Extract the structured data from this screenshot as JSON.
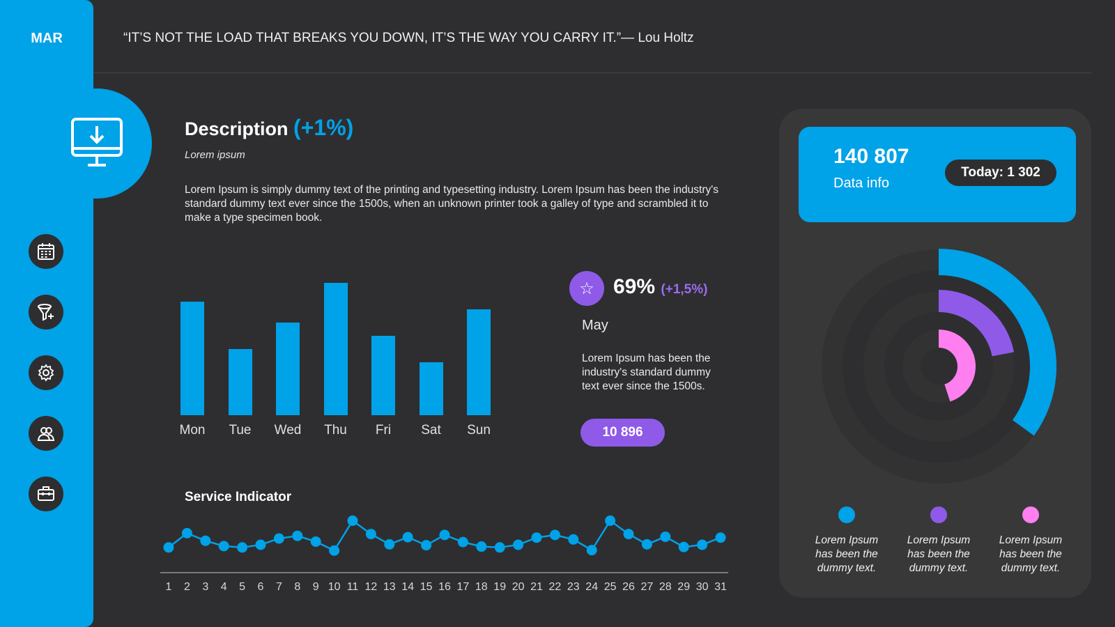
{
  "sidebar": {
    "month": "MAR",
    "nav": [
      {
        "name": "calendar-icon"
      },
      {
        "name": "filter-icon"
      },
      {
        "name": "gear-icon"
      },
      {
        "name": "users-icon"
      },
      {
        "name": "briefcase-icon"
      }
    ]
  },
  "header": {
    "quote": "“IT’S NOT THE LOAD THAT BREAKS YOU DOWN, IT’S THE WAY YOU CARRY IT.”— Lou Holtz"
  },
  "description": {
    "title": "Description",
    "change": "(+1%)",
    "subtitle": "Lorem ipsum",
    "body": "Lorem Ipsum is simply dummy text of the printing and typesetting industry. Lorem Ipsum has been the industry's standard dummy text ever since the 1500s, when an unknown printer took a galley of type and scrambled it to make a type specimen book."
  },
  "kpi": {
    "value": "69%",
    "delta": "(+1,5%)",
    "month": "May",
    "body": "Lorem Ipsum has been the industry's standard dummy text ever since the 1500s.",
    "pill": "10 896"
  },
  "service": {
    "title": "Service Indicator"
  },
  "info": {
    "number": "140 807",
    "label": "Data info",
    "today": "Today: 1 302"
  },
  "legend": [
    {
      "text": "Lorem Ipsum has been the dummy text.",
      "color": "#00a2e8"
    },
    {
      "text": "Lorem Ipsum has been the dummy text.",
      "color": "#8f5ae8"
    },
    {
      "text": "Lorem Ipsum has been the dummy text.",
      "color": "#ff7ff0"
    }
  ],
  "chart_data": [
    {
      "type": "bar",
      "categories": [
        "Mon",
        "Tue",
        "Wed",
        "Thu",
        "Fri",
        "Sat",
        "Sun"
      ],
      "values": [
        86,
        50,
        70,
        100,
        60,
        40,
        80
      ],
      "ylim": [
        0,
        100
      ]
    },
    {
      "type": "line",
      "title": "Service Indicator",
      "x": [
        1,
        2,
        3,
        4,
        5,
        6,
        7,
        8,
        9,
        10,
        11,
        12,
        13,
        14,
        15,
        16,
        17,
        18,
        19,
        20,
        21,
        22,
        23,
        24,
        25,
        26,
        27,
        28,
        29,
        30,
        31
      ],
      "values": [
        30,
        62,
        45,
        33,
        30,
        36,
        50,
        56,
        43,
        23,
        90,
        60,
        37,
        53,
        35,
        58,
        42,
        32,
        30,
        36,
        52,
        58,
        48,
        24,
        90,
        60,
        37,
        54,
        31,
        36,
        52
      ],
      "ylim": [
        0,
        100
      ]
    },
    {
      "type": "pie",
      "subtype": "radial",
      "series": [
        {
          "value": 35,
          "color": "#00a2e8"
        },
        {
          "value": 22,
          "color": "#8f5ae8"
        },
        {
          "value": 45,
          "color": "#ff7ff0"
        }
      ],
      "max": 100
    }
  ],
  "colors": {
    "accent": "#00a2e8",
    "purple": "#8f5ae8",
    "pink": "#ff7ff0",
    "background": "#2e2e30"
  }
}
